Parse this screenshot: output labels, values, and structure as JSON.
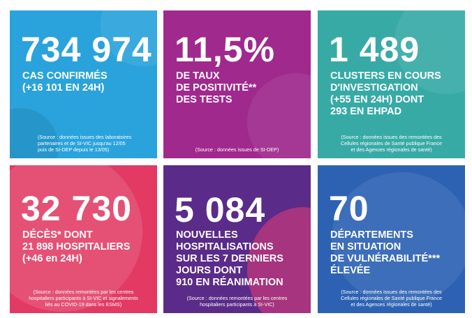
{
  "tiles": [
    {
      "big": "734 974",
      "label": [
        "CAS CONFIRMÉS",
        "(+16 101 EN 24H)"
      ],
      "source": [
        "(Source : données issues des laboratoires",
        "partenaires et de SI-VIC jusqu'au 12/05",
        "puis de SI-DEP depuis le 13/05)"
      ]
    },
    {
      "big": "11,5%",
      "label": [
        "DE TAUX",
        "DE POSITIVITÉ**",
        "DES TESTS"
      ],
      "source": [
        "(Source : données issues de SI-DEP)"
      ]
    },
    {
      "big": "1 489",
      "label": [
        "CLUSTERS EN COURS",
        "D'INVESTIGATION",
        "(+55 EN 24H) DONT",
        "293 EN EHPAD"
      ],
      "source": [
        "(Source : données issues des remontées des",
        "Cellules régionales de Santé publique France",
        "et des Agences régionales de santé)"
      ]
    },
    {
      "big": "32 730",
      "label": [
        "DÉCÈS* DONT",
        "21 898 HOSPITALIERS",
        "(+46 en 24H)"
      ],
      "source": [
        "(Source : données remontées par les centres",
        "hospitaliers participants à SI-VIC et signalements",
        "liés au COVID-19 dans les ESMS)"
      ]
    },
    {
      "big": "5 084",
      "label": [
        "NOUVELLES",
        "HOSPITALISATIONS",
        "SUR LES 7 DERNIERS",
        "JOURS DONT",
        "910 EN RÉANIMATION"
      ],
      "source": [
        "(Source : données remontées par les centres",
        "hospitaliers participants à SI-VIC)"
      ]
    },
    {
      "big": "70",
      "label": [
        "DÉPARTEMENTS",
        "EN SITUATION",
        "DE VULNÉRABILITÉ***",
        "ÉLEVÉE"
      ],
      "source": [
        "(Source : données issues des remontées des",
        "Cellules régionales de Santé publique France",
        "et des Agences régionales de santé)"
      ]
    }
  ]
}
